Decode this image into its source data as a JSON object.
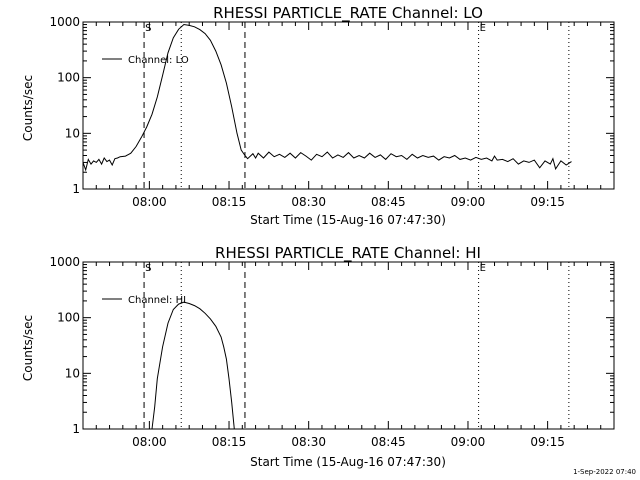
{
  "chart_data": [
    {
      "type": "line",
      "title": "RHESSI PARTICLE_RATE Channel: LO",
      "xlabel": "Start Time (15-Aug-16 07:47:30)",
      "ylabel": "Counts/sec",
      "yscale": "log",
      "ylim": [
        1,
        1000
      ],
      "xlim_minutes_after_start": [
        0,
        100
      ],
      "x_ticks": [
        {
          "label": "08:00",
          "min": 12.5
        },
        {
          "label": "08:15",
          "min": 27.5
        },
        {
          "label": "08:30",
          "min": 42.5
        },
        {
          "label": "08:45",
          "min": 57.5
        },
        {
          "label": "09:00",
          "min": 72.5
        },
        {
          "label": "09:15",
          "min": 87.5
        }
      ],
      "y_ticks": [
        {
          "label": "1",
          "value": 1
        },
        {
          "label": "10",
          "value": 10
        },
        {
          "label": "100",
          "value": 100
        },
        {
          "label": "1000",
          "value": 1000
        }
      ],
      "legend": "Channel: LO",
      "legend_position": "top-left",
      "markers": [
        {
          "label": "S",
          "min": 11.5,
          "style": "dashed"
        },
        {
          "label": "",
          "min": 18.5,
          "style": "dotted"
        },
        {
          "label": "",
          "min": 30.5,
          "style": "dashed"
        },
        {
          "label": "E",
          "min": 74.5,
          "style": "dotted"
        },
        {
          "label": "",
          "min": 91.5,
          "style": "dotted"
        }
      ],
      "series": [
        {
          "name": "Channel: LO",
          "points": [
            [
              0.0,
              3.0
            ],
            [
              0.5,
              2.2
            ],
            [
              1.0,
              3.4
            ],
            [
              1.5,
              2.8
            ],
            [
              2.0,
              3.2
            ],
            [
              2.5,
              3.0
            ],
            [
              3.0,
              3.4
            ],
            [
              3.5,
              2.8
            ],
            [
              4.0,
              3.6
            ],
            [
              4.5,
              3.1
            ],
            [
              5.0,
              3.3
            ],
            [
              5.5,
              2.7
            ],
            [
              6.0,
              3.5
            ],
            [
              6.5,
              3.6
            ],
            [
              7.0,
              3.8
            ],
            [
              8.0,
              3.9
            ],
            [
              9.0,
              4.4
            ],
            [
              10.0,
              5.8
            ],
            [
              11.0,
              8.5
            ],
            [
              12.0,
              13
            ],
            [
              13.0,
              22
            ],
            [
              14.0,
              45
            ],
            [
              15.0,
              110
            ],
            [
              16.0,
              280
            ],
            [
              17.0,
              520
            ],
            [
              18.0,
              740
            ],
            [
              19.0,
              900
            ],
            [
              20.0,
              870
            ],
            [
              21.0,
              820
            ],
            [
              22.0,
              730
            ],
            [
              23.0,
              620
            ],
            [
              24.0,
              470
            ],
            [
              25.0,
              300
            ],
            [
              26.0,
              170
            ],
            [
              27.0,
              80
            ],
            [
              28.0,
              30
            ],
            [
              29.0,
              10
            ],
            [
              29.8,
              5.0
            ],
            [
              30.5,
              4.0
            ],
            [
              31.0,
              3.5
            ],
            [
              32.0,
              4.3
            ],
            [
              32.5,
              3.6
            ],
            [
              33.0,
              4.4
            ],
            [
              34.0,
              3.6
            ],
            [
              35.0,
              4.6
            ],
            [
              36.0,
              3.8
            ],
            [
              37.0,
              4.2
            ],
            [
              38.0,
              3.7
            ],
            [
              39.0,
              4.4
            ],
            [
              40.0,
              3.6
            ],
            [
              41.0,
              4.5
            ],
            [
              42.0,
              3.9
            ],
            [
              43.0,
              3.3
            ],
            [
              44.0,
              4.2
            ],
            [
              45.0,
              3.8
            ],
            [
              46.0,
              4.6
            ],
            [
              47.0,
              3.6
            ],
            [
              48.0,
              4.1
            ],
            [
              49.0,
              3.7
            ],
            [
              50.0,
              4.5
            ],
            [
              51.0,
              3.6
            ],
            [
              52.0,
              4.0
            ],
            [
              53.0,
              3.6
            ],
            [
              54.0,
              4.4
            ],
            [
              55.0,
              3.7
            ],
            [
              56.0,
              4.1
            ],
            [
              57.0,
              3.4
            ],
            [
              58.0,
              4.3
            ],
            [
              59.0,
              3.8
            ],
            [
              60.0,
              4.0
            ],
            [
              61.0,
              3.4
            ],
            [
              62.0,
              4.2
            ],
            [
              63.0,
              3.6
            ],
            [
              64.0,
              4.0
            ],
            [
              65.0,
              3.7
            ],
            [
              66.0,
              3.9
            ],
            [
              67.0,
              3.3
            ],
            [
              68.0,
              3.8
            ],
            [
              69.0,
              3.6
            ],
            [
              70.0,
              4.0
            ],
            [
              71.0,
              3.4
            ],
            [
              72.0,
              3.6
            ],
            [
              73.0,
              3.3
            ],
            [
              74.0,
              3.7
            ],
            [
              75.0,
              3.4
            ],
            [
              76.0,
              3.6
            ],
            [
              77.0,
              3.2
            ],
            [
              77.5,
              3.9
            ],
            [
              78.0,
              3.3
            ],
            [
              79.0,
              3.4
            ],
            [
              80.0,
              3.1
            ],
            [
              81.0,
              3.5
            ],
            [
              82.0,
              2.8
            ],
            [
              83.0,
              3.2
            ],
            [
              84.0,
              3.0
            ],
            [
              85.0,
              3.3
            ],
            [
              86.0,
              2.4
            ],
            [
              87.0,
              3.2
            ],
            [
              88.0,
              2.8
            ],
            [
              88.5,
              3.5
            ],
            [
              89.0,
              2.3
            ],
            [
              90.0,
              3.2
            ],
            [
              91.0,
              2.7
            ],
            [
              92.0,
              3.1
            ]
          ]
        }
      ]
    },
    {
      "type": "line",
      "title": "RHESSI PARTICLE_RATE Channel: HI",
      "xlabel": "Start Time (15-Aug-16 07:47:30)",
      "ylabel": "Counts/sec",
      "yscale": "log",
      "ylim": [
        1,
        1000
      ],
      "xlim_minutes_after_start": [
        0,
        100
      ],
      "x_ticks": [
        {
          "label": "08:00",
          "min": 12.5
        },
        {
          "label": "08:15",
          "min": 27.5
        },
        {
          "label": "08:30",
          "min": 42.5
        },
        {
          "label": "08:45",
          "min": 57.5
        },
        {
          "label": "09:00",
          "min": 72.5
        },
        {
          "label": "09:15",
          "min": 87.5
        }
      ],
      "y_ticks": [
        {
          "label": "1",
          "value": 1
        },
        {
          "label": "10",
          "value": 10
        },
        {
          "label": "100",
          "value": 100
        },
        {
          "label": "1000",
          "value": 1000
        }
      ],
      "legend": "Channel: HI",
      "legend_position": "top-left",
      "markers": [
        {
          "label": "S",
          "min": 11.5,
          "style": "dashed"
        },
        {
          "label": "",
          "min": 18.5,
          "style": "dotted"
        },
        {
          "label": "",
          "min": 30.5,
          "style": "dashed"
        },
        {
          "label": "E",
          "min": 74.5,
          "style": "dotted"
        },
        {
          "label": "",
          "min": 91.5,
          "style": "dotted"
        }
      ],
      "series": [
        {
          "name": "Channel: HI",
          "points": [
            [
              13.0,
              1.0
            ],
            [
              13.5,
              2.5
            ],
            [
              14.0,
              8
            ],
            [
              15.0,
              30
            ],
            [
              16.0,
              80
            ],
            [
              17.0,
              140
            ],
            [
              18.0,
              175
            ],
            [
              19.0,
              190
            ],
            [
              20.0,
              180
            ],
            [
              21.0,
              165
            ],
            [
              22.0,
              145
            ],
            [
              23.0,
              120
            ],
            [
              24.0,
              95
            ],
            [
              25.0,
              70
            ],
            [
              26.0,
              45
            ],
            [
              26.5,
              30
            ],
            [
              27.0,
              18
            ],
            [
              27.5,
              8
            ],
            [
              28.0,
              3
            ],
            [
              28.5,
              1.0
            ]
          ]
        }
      ]
    }
  ],
  "footer": {
    "timestamp": "1-Sep-2022 07:40"
  }
}
